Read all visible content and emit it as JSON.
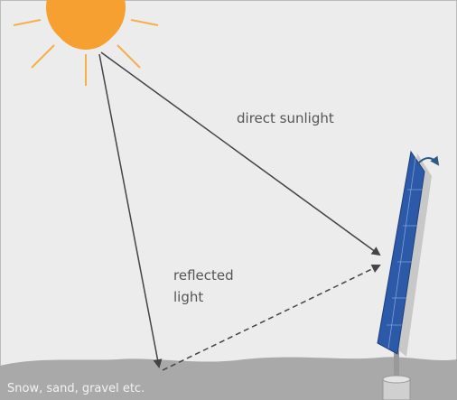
{
  "labels": {
    "direct": "direct sunlight",
    "reflected": [
      "reflected",
      "light"
    ],
    "ground": "Snow, sand, gravel etc."
  }
}
